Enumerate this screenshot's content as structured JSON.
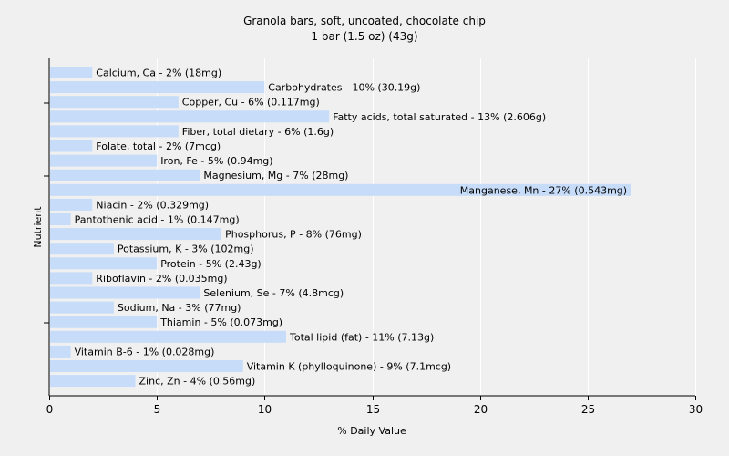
{
  "chart_data": {
    "type": "bar",
    "orientation": "horizontal",
    "title": "Granola bars, soft, uncoated, chocolate chip",
    "subtitle": "1 bar (1.5 oz) (43g)",
    "xlabel": "% Daily Value",
    "ylabel": "Nutrient",
    "xlim": [
      0,
      30
    ],
    "xticks": [
      "0",
      "5",
      "10",
      "15",
      "20",
      "25",
      "30"
    ],
    "grid": true,
    "bar_color": "#c6dcf8",
    "grid_color": "#ffffff",
    "background_color": "#f0f0f0",
    "categories": [
      "Calcium, Ca",
      "Carbohydrates",
      "Copper, Cu",
      "Fatty acids, total saturated",
      "Fiber, total dietary",
      "Folate, total",
      "Iron, Fe",
      "Magnesium, Mg",
      "Manganese, Mn",
      "Niacin",
      "Pantothenic acid",
      "Phosphorus, P",
      "Potassium, K",
      "Protein",
      "Riboflavin",
      "Selenium, Se",
      "Sodium, Na",
      "Thiamin",
      "Total lipid (fat)",
      "Vitamin B-6",
      "Vitamin K (phylloquinone)",
      "Zinc, Zn"
    ],
    "values": [
      2,
      10,
      6,
      13,
      6,
      2,
      5,
      7,
      27,
      2,
      1,
      8,
      3,
      5,
      2,
      7,
      3,
      5,
      11,
      1,
      9,
      4
    ],
    "labels": [
      "Calcium, Ca - 2% (18mg)",
      "Carbohydrates - 10% (30.19g)",
      "Copper, Cu - 6% (0.117mg)",
      "Fatty acids, total saturated - 13% (2.606g)",
      "Fiber, total dietary - 6% (1.6g)",
      "Folate, total - 2% (7mcg)",
      "Iron, Fe - 5% (0.94mg)",
      "Magnesium, Mg - 7% (28mg)",
      "Manganese, Mn - 27% (0.543mg)",
      "Niacin - 2% (0.329mg)",
      "Pantothenic acid - 1% (0.147mg)",
      "Phosphorus, P - 8% (76mg)",
      "Potassium, K - 3% (102mg)",
      "Protein - 5% (2.43g)",
      "Riboflavin - 2% (0.035mg)",
      "Selenium, Se - 7% (4.8mcg)",
      "Sodium, Na - 3% (77mg)",
      "Thiamin - 5% (0.073mg)",
      "Total lipid (fat) - 11% (7.13g)",
      "Vitamin B-6 - 1% (0.028mg)",
      "Vitamin K (phylloquinone) - 9% (7.1mcg)",
      "Zinc, Zn - 4% (0.56mg)"
    ]
  }
}
